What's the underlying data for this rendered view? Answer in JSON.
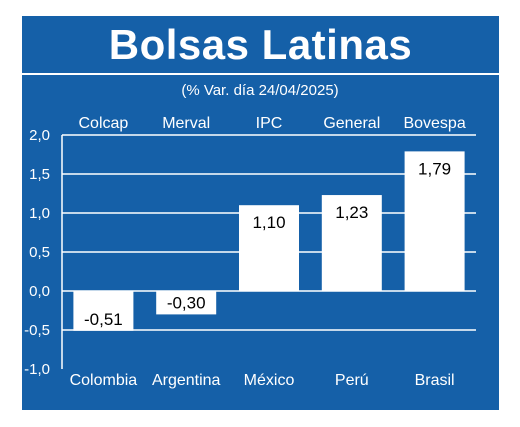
{
  "title": "Bolsas Latinas",
  "subtitle": "(% Var. día 24/04/2025)",
  "colors": {
    "panel": "#1560a8",
    "bars": "#ffffff",
    "text": "#ffffff",
    "label_text": "#000000"
  },
  "chart_data": {
    "type": "bar",
    "title": "Bolsas Latinas",
    "subtitle": "(% Var. día 24/04/2025)",
    "categories": [
      "Colombia",
      "Argentina",
      "México",
      "Perú",
      "Brasil"
    ],
    "index_names": [
      "Colcap",
      "Merval",
      "IPC",
      "General",
      "Bovespa"
    ],
    "values": [
      -0.51,
      -0.3,
      1.1,
      1.23,
      1.79
    ],
    "value_labels": [
      "-0,51",
      "-0,30",
      "1,10",
      "1,23",
      "1,79"
    ],
    "ylim": [
      -1.0,
      2.0
    ],
    "yticks": [
      2.0,
      1.5,
      1.0,
      0.5,
      0.0,
      -0.5,
      -1.0
    ],
    "ytick_labels": [
      "2,0",
      "1,5",
      "1,0",
      "0,5",
      "0,0",
      "-0,5",
      "-1,0"
    ],
    "grid": true,
    "legend": "none"
  }
}
